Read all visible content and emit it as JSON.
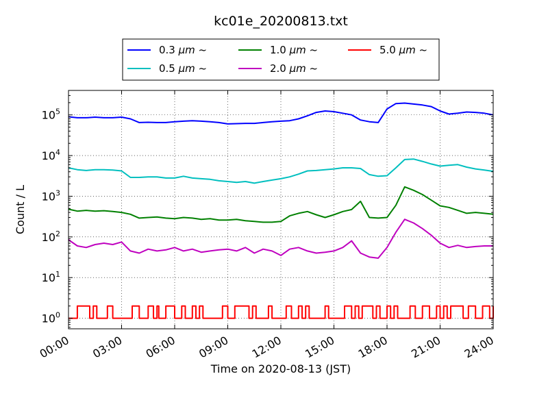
{
  "chart_data": {
    "type": "line",
    "title": "kc01e_20200813.txt",
    "xlabel": "Time on 2020-08-13 (JST)",
    "ylabel": "Count / L",
    "yscale": "log",
    "xlim": [
      "00:00",
      "24:00"
    ],
    "ylim": [
      0.55,
      400000
    ],
    "grid": true,
    "legend_position": "top, above plot",
    "x_ticks": [
      "00:00",
      "03:00",
      "06:00",
      "09:00",
      "12:00",
      "15:00",
      "18:00",
      "21:00",
      "24:00"
    ],
    "y_ticks": [
      {
        "value": 1,
        "base": "10",
        "exp": "0"
      },
      {
        "value": 10,
        "base": "10",
        "exp": "1"
      },
      {
        "value": 100,
        "base": "10",
        "exp": "2"
      },
      {
        "value": 1000,
        "base": "10",
        "exp": "3"
      },
      {
        "value": 10000,
        "base": "10",
        "exp": "4"
      },
      {
        "value": 100000,
        "base": "10",
        "exp": "5"
      }
    ],
    "series": [
      {
        "name": "0.3 μm ~",
        "legend_label": "0.3 ",
        "legend_unit": "μm",
        "legend_suffix": " ~",
        "color": "#0000ff",
        "x_hours": [
          0,
          0.5,
          1,
          1.5,
          2,
          2.5,
          3,
          3.5,
          4,
          4.5,
          5,
          5.5,
          6,
          6.5,
          7,
          7.5,
          8,
          8.5,
          9,
          9.5,
          10,
          10.5,
          11,
          11.5,
          12,
          12.5,
          13,
          13.5,
          14,
          14.5,
          15,
          15.5,
          16,
          16.5,
          17,
          17.5,
          18,
          18.5,
          19,
          19.5,
          20,
          20.5,
          21,
          21.5,
          22,
          22.5,
          23,
          23.5,
          24
        ],
        "values": [
          90000,
          85000,
          85000,
          88000,
          85000,
          85000,
          88000,
          80000,
          65000,
          66000,
          65000,
          65000,
          68000,
          70000,
          72000,
          70000,
          68000,
          65000,
          60000,
          61000,
          62000,
          62000,
          65000,
          68000,
          70000,
          72000,
          80000,
          95000,
          115000,
          125000,
          120000,
          110000,
          100000,
          75000,
          68000,
          65000,
          140000,
          190000,
          195000,
          185000,
          175000,
          160000,
          125000,
          105000,
          110000,
          118000,
          115000,
          110000,
          100000
        ]
      },
      {
        "name": "0.5 μm ~",
        "legend_label": "0.5 ",
        "legend_unit": "μm",
        "legend_suffix": " ~",
        "color": "#00bfbf",
        "x_hours": [
          0,
          0.5,
          1,
          1.5,
          2,
          2.5,
          3,
          3.5,
          4,
          4.5,
          5,
          5.5,
          6,
          6.5,
          7,
          7.5,
          8,
          8.5,
          9,
          9.5,
          10,
          10.5,
          11,
          11.5,
          12,
          12.5,
          13,
          13.5,
          14,
          14.5,
          15,
          15.5,
          16,
          16.5,
          17,
          17.5,
          18,
          18.5,
          19,
          19.5,
          20,
          20.5,
          21,
          21.5,
          22,
          22.5,
          23,
          23.5,
          24
        ],
        "values": [
          5000,
          4500,
          4300,
          4500,
          4500,
          4400,
          4200,
          2900,
          2900,
          3000,
          3000,
          2800,
          2800,
          3100,
          2800,
          2700,
          2600,
          2400,
          2300,
          2200,
          2300,
          2100,
          2300,
          2500,
          2700,
          3000,
          3500,
          4200,
          4300,
          4500,
          4700,
          5000,
          5000,
          4800,
          3400,
          3100,
          3200,
          5000,
          8000,
          8200,
          7200,
          6200,
          5500,
          5800,
          6000,
          5200,
          4700,
          4400,
          4100
        ]
      },
      {
        "name": "1.0 μm ~",
        "legend_label": "1.0 ",
        "legend_unit": "μm",
        "legend_suffix": " ~",
        "color": "#008000",
        "x_hours": [
          0,
          0.5,
          1,
          1.5,
          2,
          2.5,
          3,
          3.5,
          4,
          4.5,
          5,
          5.5,
          6,
          6.5,
          7,
          7.5,
          8,
          8.5,
          9,
          9.5,
          10,
          10.5,
          11,
          11.5,
          12,
          12.5,
          13,
          13.5,
          14,
          14.5,
          15,
          15.5,
          16,
          16.5,
          17,
          17.5,
          18,
          18.5,
          19,
          19.5,
          20,
          20.5,
          21,
          21.5,
          22,
          22.5,
          23,
          23.5,
          24
        ],
        "values": [
          480,
          430,
          450,
          430,
          440,
          420,
          400,
          360,
          290,
          300,
          310,
          290,
          280,
          300,
          290,
          270,
          280,
          260,
          260,
          270,
          250,
          240,
          230,
          230,
          240,
          330,
          380,
          420,
          350,
          300,
          350,
          420,
          470,
          750,
          300,
          290,
          300,
          600,
          1700,
          1400,
          1100,
          800,
          580,
          530,
          450,
          380,
          400,
          380,
          360
        ]
      },
      {
        "name": "2.0 μm ~",
        "legend_label": "2.0 ",
        "legend_unit": "μm",
        "legend_suffix": " ~",
        "color": "#bf00bf",
        "x_hours": [
          0,
          0.5,
          1,
          1.5,
          2,
          2.5,
          3,
          3.5,
          4,
          4.5,
          5,
          5.5,
          6,
          6.5,
          7,
          7.5,
          8,
          8.5,
          9,
          9.5,
          10,
          10.5,
          11,
          11.5,
          12,
          12.5,
          13,
          13.5,
          14,
          14.5,
          15,
          15.5,
          16,
          16.5,
          17,
          17.5,
          18,
          18.5,
          19,
          19.5,
          20,
          20.5,
          21,
          21.5,
          22,
          22.5,
          23,
          23.5,
          24
        ],
        "values": [
          85,
          60,
          55,
          65,
          70,
          65,
          75,
          45,
          40,
          50,
          45,
          48,
          55,
          45,
          50,
          42,
          45,
          48,
          50,
          45,
          55,
          40,
          50,
          45,
          35,
          50,
          55,
          45,
          40,
          42,
          45,
          55,
          80,
          40,
          32,
          30,
          55,
          130,
          270,
          220,
          160,
          110,
          70,
          55,
          62,
          55,
          58,
          60,
          60
        ]
      },
      {
        "name": "5.0 μm ~",
        "legend_label": "5.0 ",
        "legend_unit": "μm",
        "legend_suffix": " ~",
        "color": "#ff0000",
        "x_hours": [
          0,
          0.5,
          1,
          1.2,
          1.4,
          1.6,
          2,
          2.2,
          2.5,
          3,
          3.1,
          3.2,
          3.4,
          3.6,
          4,
          4.2,
          4.5,
          4.8,
          5,
          5.1,
          5.3,
          5.5,
          6,
          6.2,
          6.4,
          6.6,
          7,
          7.2,
          7.4,
          7.6,
          8,
          8.2,
          8.5,
          8.7,
          9,
          9.2,
          9.4,
          9.6,
          10,
          10.2,
          10.4,
          10.6,
          11,
          11.3,
          11.5,
          12,
          12.3,
          12.6,
          13,
          13.2,
          13.4,
          13.6,
          14,
          14.2,
          14.5,
          14.7,
          15,
          15.3,
          15.6,
          16,
          16.2,
          16.4,
          16.6,
          17,
          17.2,
          17.4,
          17.6,
          18,
          18.2,
          18.4,
          18.6,
          19,
          19.3,
          19.6,
          20,
          20.4,
          20.8,
          21,
          21.2,
          21.4,
          21.6,
          22,
          22.3,
          22.6,
          23,
          23.2,
          23.4,
          23.8,
          24
        ],
        "values": [
          1,
          2,
          2,
          1,
          2,
          1,
          1,
          2,
          1,
          1,
          1,
          1,
          1,
          2,
          1,
          1,
          2,
          1,
          2,
          1,
          1,
          2,
          1,
          1,
          2,
          1,
          2,
          1,
          2,
          1,
          1,
          1,
          1,
          2,
          1,
          1,
          2,
          2,
          2,
          1,
          2,
          1,
          1,
          2,
          1,
          1,
          2,
          1,
          2,
          1,
          2,
          1,
          1,
          1,
          2,
          1,
          1,
          1,
          2,
          1,
          2,
          1,
          2,
          2,
          1,
          2,
          1,
          2,
          1,
          2,
          1,
          1,
          2,
          1,
          2,
          1,
          2,
          1,
          2,
          1,
          2,
          2,
          1,
          2,
          1,
          1,
          2,
          1,
          2
        ]
      }
    ]
  }
}
